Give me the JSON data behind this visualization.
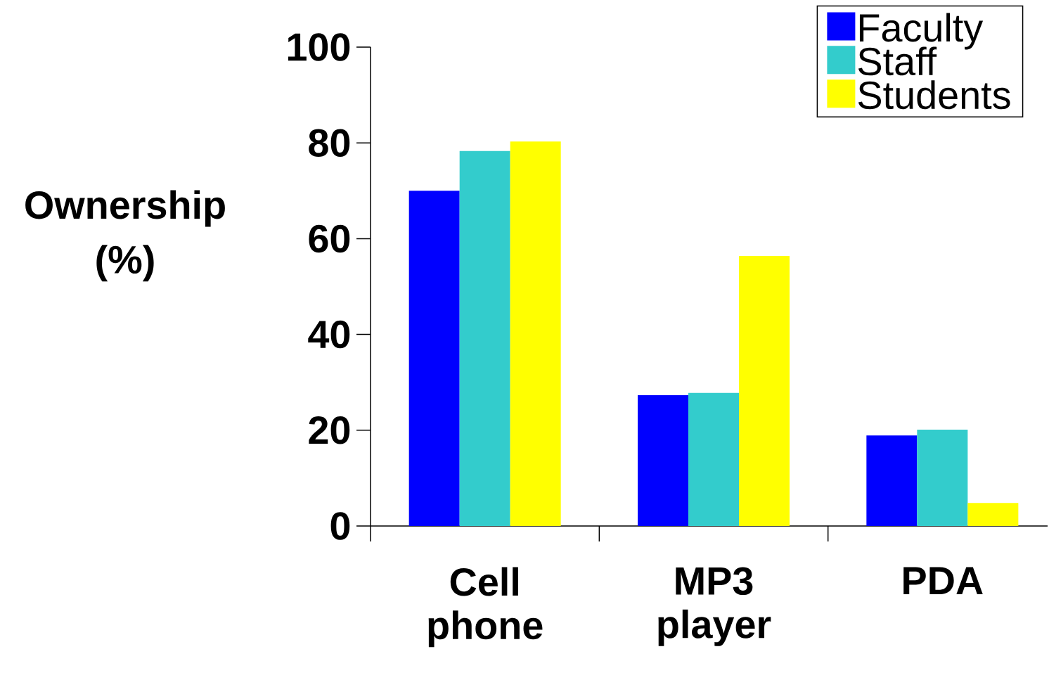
{
  "chart_data": {
    "type": "bar",
    "ylabel": "Ownership (%)",
    "categories": [
      "Cell phone",
      "MP3 player",
      "PDA"
    ],
    "series": [
      {
        "name": "Faculty",
        "color": "#0000ff",
        "values": [
          70,
          27.3,
          18.9
        ]
      },
      {
        "name": "Staff",
        "color": "#33cccc",
        "values": [
          78.3,
          27.8,
          20.1
        ]
      },
      {
        "name": "Students",
        "color": "#ffff00",
        "values": [
          80.3,
          56.4,
          4.8
        ]
      }
    ],
    "ylim": [
      0,
      100
    ],
    "yticks": [
      0,
      20,
      40,
      60,
      80,
      100
    ],
    "legend": "top right"
  }
}
